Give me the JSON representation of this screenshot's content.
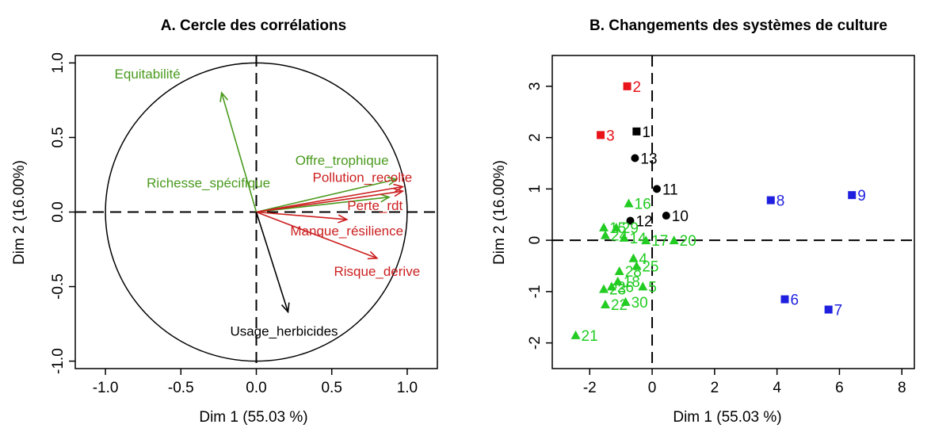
{
  "chart_data": [
    {
      "type": "scatter",
      "subtype": "correlation-circle",
      "title": "A. Cercle des corrélations",
      "xlabel": "Dim 1 (55.03 %)",
      "ylabel": "Dim 2 (16.00%)",
      "xlim": [
        -1.2,
        1.2
      ],
      "ylim": [
        -1.05,
        1.05
      ],
      "xticks": [
        "-1.0",
        "-0.5",
        "0.0",
        "0.5",
        "1.0"
      ],
      "yticks": [
        "-1.0",
        "-0.5",
        "0.0",
        "0.5",
        "1.0"
      ],
      "xtick_values": [
        -1.0,
        -0.5,
        0.0,
        0.5,
        1.0
      ],
      "ytick_values": [
        -1.0,
        -0.5,
        0.0,
        0.5,
        1.0
      ],
      "unit_circle": true,
      "vectors": [
        {
          "name": "Equitabilité",
          "x": -0.23,
          "y": 0.8,
          "color": "#4a9a1e"
        },
        {
          "name": "Offre_trophique",
          "x": 0.93,
          "y": 0.22,
          "color": "#4a9a1e"
        },
        {
          "name": "Richesse_spécifique",
          "x": 0.88,
          "y": 0.1,
          "color": "#4a9a1e"
        },
        {
          "name": "Pollution_recolte",
          "x": 0.97,
          "y": 0.17,
          "color": "#cc1f1f"
        },
        {
          "name": "Perte_rdt",
          "x": 0.97,
          "y": 0.14,
          "color": "#cc1f1f"
        },
        {
          "name": "Manque_résilience",
          "x": 0.6,
          "y": -0.05,
          "color": "#cc1f1f"
        },
        {
          "name": "Risque_derive",
          "x": 0.8,
          "y": -0.31,
          "color": "#cc1f1f"
        },
        {
          "name": "Usage_herbicides",
          "x": 0.21,
          "y": -0.67,
          "color": "#000000"
        }
      ]
    },
    {
      "type": "scatter",
      "title": "B. Changements des systèmes de culture",
      "xlabel": "Dim 1 (55.03 %)",
      "ylabel": "Dim 2 (16.00%)",
      "xlim": [
        -3.2,
        8.4
      ],
      "ylim": [
        -2.5,
        3.6
      ],
      "xticks": [
        "-2",
        "0",
        "2",
        "4",
        "6",
        "8"
      ],
      "yticks": [
        "-2",
        "-1",
        "0",
        "1",
        "2",
        "3"
      ],
      "xtick_values": [
        -2,
        0,
        2,
        4,
        6,
        8
      ],
      "ytick_values": [
        -2,
        -1,
        0,
        1,
        2,
        3
      ],
      "points": [
        {
          "label": "1",
          "x": -0.5,
          "y": 2.12,
          "shape": "square",
          "color": "#000000"
        },
        {
          "label": "2",
          "x": -0.8,
          "y": 3.0,
          "shape": "square",
          "color": "#e8141a"
        },
        {
          "label": "3",
          "x": -1.65,
          "y": 2.05,
          "shape": "square",
          "color": "#e8141a"
        },
        {
          "label": "4",
          "x": -0.6,
          "y": -0.35,
          "shape": "triangle",
          "color": "#22cc22"
        },
        {
          "label": "5",
          "x": -0.3,
          "y": -0.9,
          "shape": "triangle",
          "color": "#22cc22"
        },
        {
          "label": "6",
          "x": 4.25,
          "y": -1.15,
          "shape": "square",
          "color": "#1f1fe0"
        },
        {
          "label": "7",
          "x": 5.65,
          "y": -1.35,
          "shape": "square",
          "color": "#1f1fe0"
        },
        {
          "label": "8",
          "x": 3.8,
          "y": 0.78,
          "shape": "square",
          "color": "#1f1fe0"
        },
        {
          "label": "9",
          "x": 6.4,
          "y": 0.88,
          "shape": "square",
          "color": "#1f1fe0"
        },
        {
          "label": "10",
          "x": 0.45,
          "y": 0.48,
          "shape": "circle",
          "color": "#000000"
        },
        {
          "label": "11",
          "x": 0.15,
          "y": 1.0,
          "shape": "circle",
          "color": "#000000"
        },
        {
          "label": "12",
          "x": -0.7,
          "y": 0.38,
          "shape": "circle",
          "color": "#000000"
        },
        {
          "label": "13",
          "x": -0.55,
          "y": 1.6,
          "shape": "circle",
          "color": "#000000"
        },
        {
          "label": "14",
          "x": -0.9,
          "y": 0.05,
          "shape": "triangle",
          "color": "#22cc22"
        },
        {
          "label": "15",
          "x": -1.55,
          "y": 0.25,
          "shape": "triangle",
          "color": "#22cc22"
        },
        {
          "label": "16",
          "x": -0.75,
          "y": 0.72,
          "shape": "triangle",
          "color": "#22cc22"
        },
        {
          "label": "17",
          "x": -0.2,
          "y": 0.0,
          "shape": "triangle",
          "color": "#22cc22"
        },
        {
          "label": "18",
          "x": -1.1,
          "y": -0.8,
          "shape": "triangle",
          "color": "#22cc22"
        },
        {
          "label": "20",
          "x": 0.7,
          "y": 0.0,
          "shape": "triangle",
          "color": "#22cc22"
        },
        {
          "label": "21",
          "x": -2.45,
          "y": -1.85,
          "shape": "triangle",
          "color": "#22cc22"
        },
        {
          "label": "22",
          "x": -1.5,
          "y": -1.25,
          "shape": "triangle",
          "color": "#22cc22"
        },
        {
          "label": "23",
          "x": -1.55,
          "y": -0.95,
          "shape": "triangle",
          "color": "#22cc22"
        },
        {
          "label": "24",
          "x": -1.5,
          "y": 0.1,
          "shape": "triangle",
          "color": "#22cc22"
        },
        {
          "label": "25",
          "x": -0.5,
          "y": -0.5,
          "shape": "triangle",
          "color": "#22cc22"
        },
        {
          "label": "26",
          "x": -1.3,
          "y": -0.9,
          "shape": "triangle",
          "color": "#22cc22"
        },
        {
          "label": "28",
          "x": -1.05,
          "y": -0.6,
          "shape": "triangle",
          "color": "#22cc22"
        },
        {
          "label": "29",
          "x": -1.15,
          "y": 0.25,
          "shape": "triangle",
          "color": "#22cc22"
        },
        {
          "label": "30",
          "x": -0.85,
          "y": -1.2,
          "shape": "triangle",
          "color": "#22cc22"
        }
      ]
    }
  ]
}
